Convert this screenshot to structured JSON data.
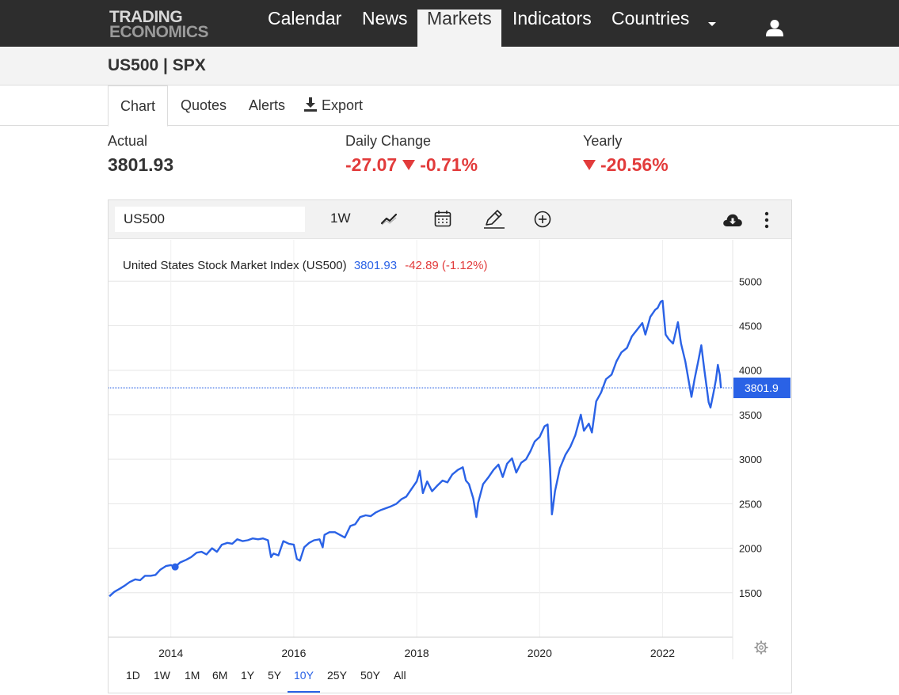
{
  "nav": {
    "logo_line1": "TRADING",
    "logo_line2": "ECONOMICS",
    "items": [
      "Calendar",
      "News",
      "Markets",
      "Indicators",
      "Countries"
    ],
    "active": "Markets"
  },
  "page_title": "US500 | SPX",
  "tabs": {
    "chart": "Chart",
    "quotes": "Quotes",
    "alerts": "Alerts",
    "export": "Export"
  },
  "stats": {
    "actual_label": "Actual",
    "actual_value": "3801.93",
    "daily_label": "Daily Change",
    "daily_abs": "-27.07",
    "daily_pct": "-0.71%",
    "yearly_label": "Yearly",
    "yearly_pct": "-20.56%"
  },
  "toolbar": {
    "symbol_value": "US500",
    "interval": "1W"
  },
  "colors": {
    "line": "#2a62e6",
    "negative": "#e23b3b",
    "accent": "#2a62e6"
  },
  "chart_data": {
    "type": "line",
    "title": "United States Stock Market Index (US500)",
    "title_value": "3801.93",
    "title_change": "-42.89 (-1.12%)",
    "last_label": "3801.9",
    "x_ticks": [
      "2014",
      "2016",
      "2018",
      "2020",
      "2022"
    ],
    "y_ticks": [
      1500,
      2000,
      2500,
      3000,
      3500,
      4000,
      4500,
      5000
    ],
    "ylim": [
      1000,
      5400
    ],
    "x_range": [
      2013.0,
      2022.95
    ],
    "grid": true,
    "marker_point": {
      "x": 2014.07,
      "y": 1790
    },
    "series": [
      {
        "values": [
          [
            2013.0,
            1460
          ],
          [
            2013.08,
            1510
          ],
          [
            2013.17,
            1545
          ],
          [
            2013.25,
            1580
          ],
          [
            2013.33,
            1620
          ],
          [
            2013.42,
            1650
          ],
          [
            2013.5,
            1640
          ],
          [
            2013.58,
            1690
          ],
          [
            2013.67,
            1690
          ],
          [
            2013.75,
            1700
          ],
          [
            2013.83,
            1760
          ],
          [
            2013.92,
            1800
          ],
          [
            2014.0,
            1810
          ],
          [
            2014.07,
            1790
          ],
          [
            2014.15,
            1840
          ],
          [
            2014.25,
            1870
          ],
          [
            2014.33,
            1900
          ],
          [
            2014.42,
            1950
          ],
          [
            2014.5,
            1960
          ],
          [
            2014.58,
            1930
          ],
          [
            2014.67,
            2000
          ],
          [
            2014.75,
            1960
          ],
          [
            2014.83,
            2040
          ],
          [
            2014.92,
            2060
          ],
          [
            2015.0,
            2050
          ],
          [
            2015.08,
            2100
          ],
          [
            2015.17,
            2080
          ],
          [
            2015.25,
            2090
          ],
          [
            2015.33,
            2110
          ],
          [
            2015.42,
            2100
          ],
          [
            2015.5,
            2110
          ],
          [
            2015.58,
            2090
          ],
          [
            2015.63,
            1900
          ],
          [
            2015.67,
            1940
          ],
          [
            2015.75,
            1920
          ],
          [
            2015.83,
            2080
          ],
          [
            2015.92,
            2050
          ],
          [
            2016.0,
            2040
          ],
          [
            2016.05,
            1880
          ],
          [
            2016.1,
            1860
          ],
          [
            2016.17,
            2010
          ],
          [
            2016.25,
            2060
          ],
          [
            2016.33,
            2090
          ],
          [
            2016.42,
            2100
          ],
          [
            2016.47,
            2010
          ],
          [
            2016.5,
            2150
          ],
          [
            2016.58,
            2180
          ],
          [
            2016.67,
            2180
          ],
          [
            2016.75,
            2150
          ],
          [
            2016.83,
            2120
          ],
          [
            2016.92,
            2250
          ],
          [
            2017.0,
            2270
          ],
          [
            2017.08,
            2350
          ],
          [
            2017.17,
            2370
          ],
          [
            2017.25,
            2360
          ],
          [
            2017.33,
            2400
          ],
          [
            2017.42,
            2430
          ],
          [
            2017.5,
            2450
          ],
          [
            2017.58,
            2470
          ],
          [
            2017.67,
            2500
          ],
          [
            2017.75,
            2550
          ],
          [
            2017.83,
            2580
          ],
          [
            2017.92,
            2670
          ],
          [
            2018.0,
            2750
          ],
          [
            2018.05,
            2870
          ],
          [
            2018.1,
            2620
          ],
          [
            2018.17,
            2750
          ],
          [
            2018.25,
            2640
          ],
          [
            2018.33,
            2700
          ],
          [
            2018.42,
            2760
          ],
          [
            2018.5,
            2740
          ],
          [
            2018.58,
            2830
          ],
          [
            2018.67,
            2880
          ],
          [
            2018.75,
            2910
          ],
          [
            2018.8,
            2760
          ],
          [
            2018.85,
            2720
          ],
          [
            2018.92,
            2560
          ],
          [
            2018.97,
            2350
          ],
          [
            2019.0,
            2510
          ],
          [
            2019.08,
            2720
          ],
          [
            2019.17,
            2800
          ],
          [
            2019.25,
            2880
          ],
          [
            2019.33,
            2940
          ],
          [
            2019.4,
            2800
          ],
          [
            2019.47,
            2950
          ],
          [
            2019.55,
            3010
          ],
          [
            2019.62,
            2850
          ],
          [
            2019.7,
            2960
          ],
          [
            2019.78,
            3000
          ],
          [
            2019.85,
            3090
          ],
          [
            2019.92,
            3200
          ],
          [
            2020.0,
            3250
          ],
          [
            2020.08,
            3370
          ],
          [
            2020.13,
            3390
          ],
          [
            2020.17,
            2900
          ],
          [
            2020.2,
            2380
          ],
          [
            2020.22,
            2480
          ],
          [
            2020.25,
            2640
          ],
          [
            2020.33,
            2900
          ],
          [
            2020.42,
            3050
          ],
          [
            2020.5,
            3140
          ],
          [
            2020.58,
            3270
          ],
          [
            2020.67,
            3500
          ],
          [
            2020.72,
            3320
          ],
          [
            2020.8,
            3400
          ],
          [
            2020.85,
            3300
          ],
          [
            2020.92,
            3650
          ],
          [
            2021.0,
            3750
          ],
          [
            2021.08,
            3900
          ],
          [
            2021.17,
            3950
          ],
          [
            2021.25,
            4100
          ],
          [
            2021.33,
            4200
          ],
          [
            2021.42,
            4250
          ],
          [
            2021.5,
            4380
          ],
          [
            2021.58,
            4450
          ],
          [
            2021.67,
            4530
          ],
          [
            2021.72,
            4400
          ],
          [
            2021.8,
            4600
          ],
          [
            2021.88,
            4680
          ],
          [
            2021.92,
            4700
          ],
          [
            2021.97,
            4770
          ],
          [
            2022.0,
            4780
          ],
          [
            2022.05,
            4400
          ],
          [
            2022.1,
            4350
          ],
          [
            2022.17,
            4300
          ],
          [
            2022.25,
            4540
          ],
          [
            2022.3,
            4300
          ],
          [
            2022.37,
            4100
          ],
          [
            2022.42,
            3900
          ],
          [
            2022.47,
            3700
          ],
          [
            2022.52,
            3900
          ],
          [
            2022.58,
            4100
          ],
          [
            2022.63,
            4280
          ],
          [
            2022.68,
            4000
          ],
          [
            2022.75,
            3640
          ],
          [
            2022.78,
            3580
          ],
          [
            2022.83,
            3750
          ],
          [
            2022.87,
            3900
          ],
          [
            2022.9,
            4060
          ],
          [
            2022.93,
            3950
          ],
          [
            2022.95,
            3802
          ]
        ]
      }
    ]
  },
  "ranges": [
    "1D",
    "1W",
    "1M",
    "6M",
    "1Y",
    "5Y",
    "10Y",
    "25Y",
    "50Y",
    "All"
  ],
  "active_range": "10Y"
}
